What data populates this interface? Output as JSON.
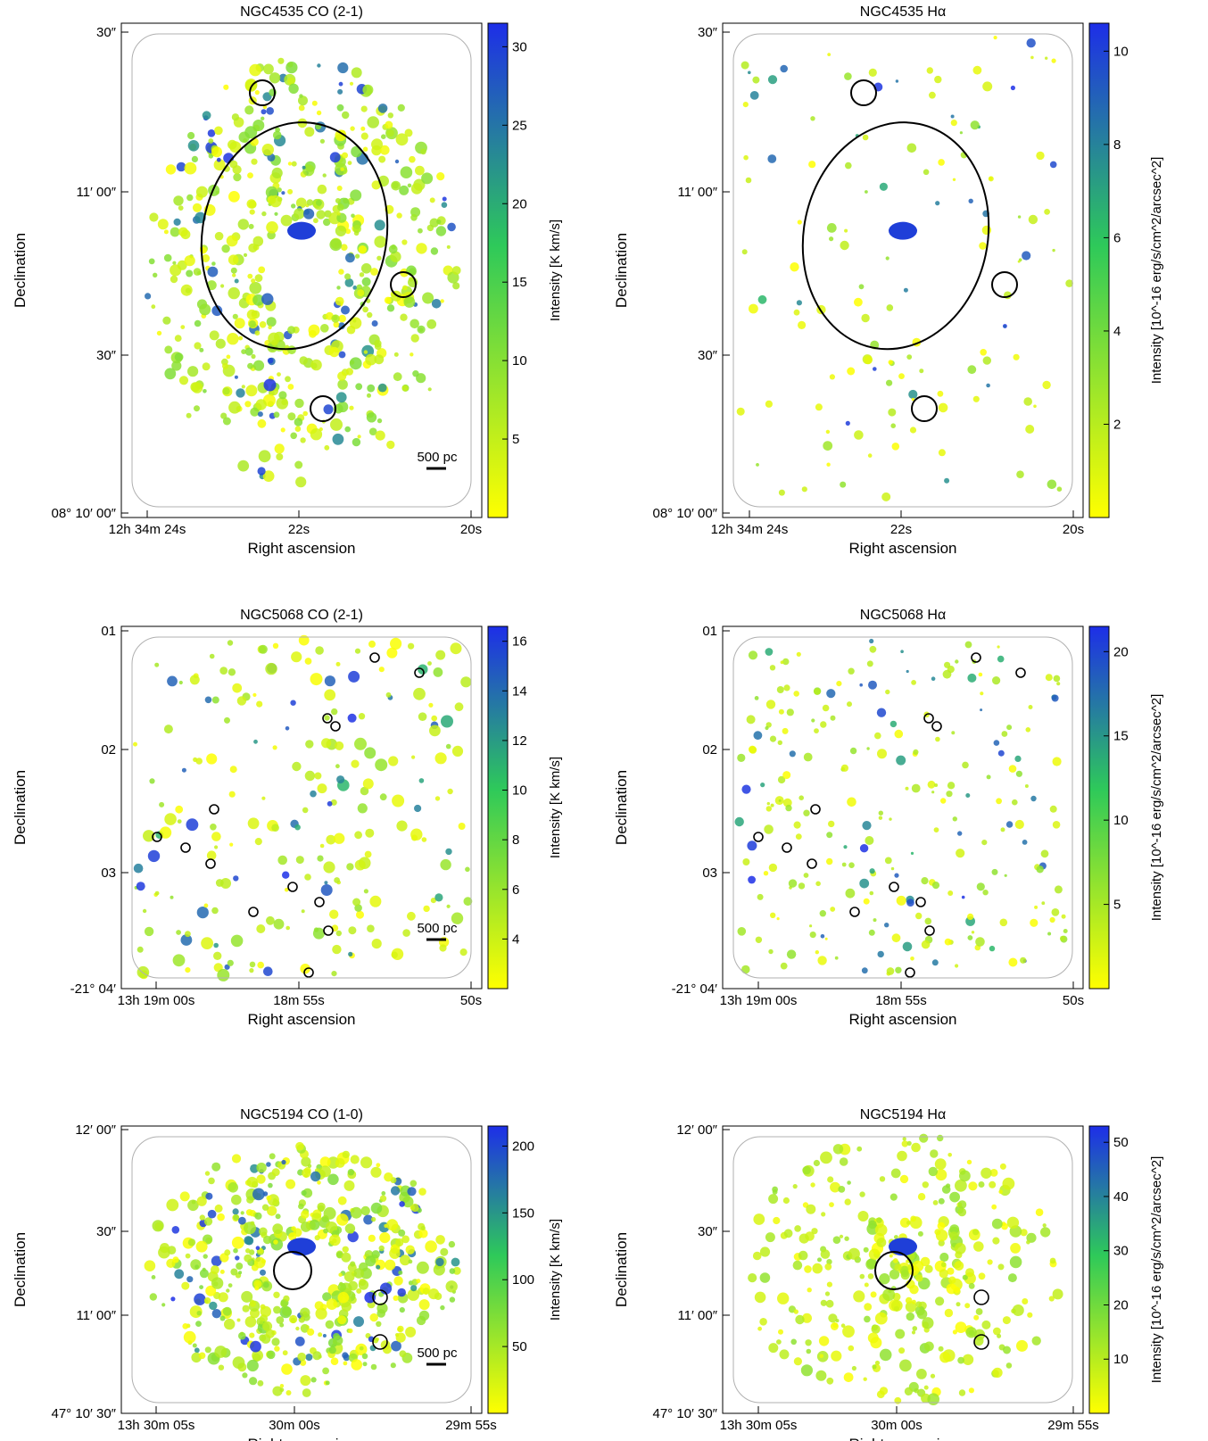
{
  "colormap": {
    "low": "#ffff00",
    "mid": "#2ec95a",
    "high": "#1d2ee8"
  },
  "panels": [
    {
      "id": "ngc4535-co",
      "title": "NGC4535 CO (2-1)",
      "xlabel": "Right ascension",
      "ylabel": "Declination",
      "cbar_label": "Intensity [K km/s]",
      "cbar_ticks": [
        "5",
        "10",
        "15",
        "20",
        "25",
        "30"
      ],
      "ra_ticks": [
        "12h 34m 24s",
        "22s",
        "20s"
      ],
      "dec_ticks": [
        "30″",
        "11′ 00″",
        "30″",
        "08° 10′ 00″"
      ],
      "scalebar": "500 pc"
    },
    {
      "id": "ngc4535-ha",
      "title": "NGC4535 Hα",
      "xlabel": "Right ascension",
      "ylabel": "Declination",
      "cbar_label": "Intensity [10^-16 erg/s/cm^2/arcsec^2]",
      "cbar_ticks": [
        "2",
        "4",
        "6",
        "8",
        "10"
      ],
      "ra_ticks": [
        "12h 34m 24s",
        "22s",
        "20s"
      ],
      "dec_ticks": [
        "30″",
        "11′ 00″",
        "30″",
        "08° 10′ 00″"
      ]
    },
    {
      "id": "ngc5068-co",
      "title": "NGC5068 CO (2-1)",
      "xlabel": "Right ascension",
      "ylabel": "Declination",
      "cbar_label": "Intensity [K km/s]",
      "cbar_ticks": [
        "4",
        "6",
        "8",
        "10",
        "12",
        "14",
        "16"
      ],
      "ra_ticks": [
        "13h 19m 00s",
        "18m 55s",
        "50s"
      ],
      "dec_ticks": [
        "01",
        "02",
        "03",
        "-21° 04′"
      ],
      "scalebar": "500 pc"
    },
    {
      "id": "ngc5068-ha",
      "title": "NGC5068 Hα",
      "xlabel": "Right ascension",
      "ylabel": "Declination",
      "cbar_label": "Intensity [10^-16 erg/s/cm^2/arcsec^2]",
      "cbar_ticks": [
        "5",
        "10",
        "15",
        "20"
      ],
      "ra_ticks": [
        "13h 19m 00s",
        "18m 55s",
        "50s"
      ],
      "dec_ticks": [
        "01",
        "02",
        "03",
        "-21° 04′"
      ]
    },
    {
      "id": "ngc5194-co",
      "title": "NGC5194 CO (1-0)",
      "xlabel": "Right ascension",
      "ylabel": "Declination",
      "cbar_label": "Intensity [K km/s]",
      "cbar_ticks": [
        "50",
        "100",
        "150",
        "200"
      ],
      "ra_ticks": [
        "13h 30m 05s",
        "30m 00s",
        "29m 55s"
      ],
      "dec_ticks": [
        "12′ 00″",
        "30″",
        "11′ 00″",
        "47° 10′ 30″"
      ],
      "scalebar": "500 pc"
    },
    {
      "id": "ngc5194-ha",
      "title": "NGC5194 Hα",
      "xlabel": "Right ascension",
      "ylabel": "Declination",
      "cbar_label": "Intensity [10^-16 erg/s/cm^2/arcsec^2]",
      "cbar_ticks": [
        "10",
        "20",
        "30",
        "40",
        "50"
      ],
      "ra_ticks": [
        "13h 30m 05s",
        "30m 00s",
        "29m 55s"
      ],
      "dec_ticks": [
        "12′ 00″",
        "30″",
        "11′ 00″",
        "47° 10′ 30″"
      ]
    }
  ]
}
